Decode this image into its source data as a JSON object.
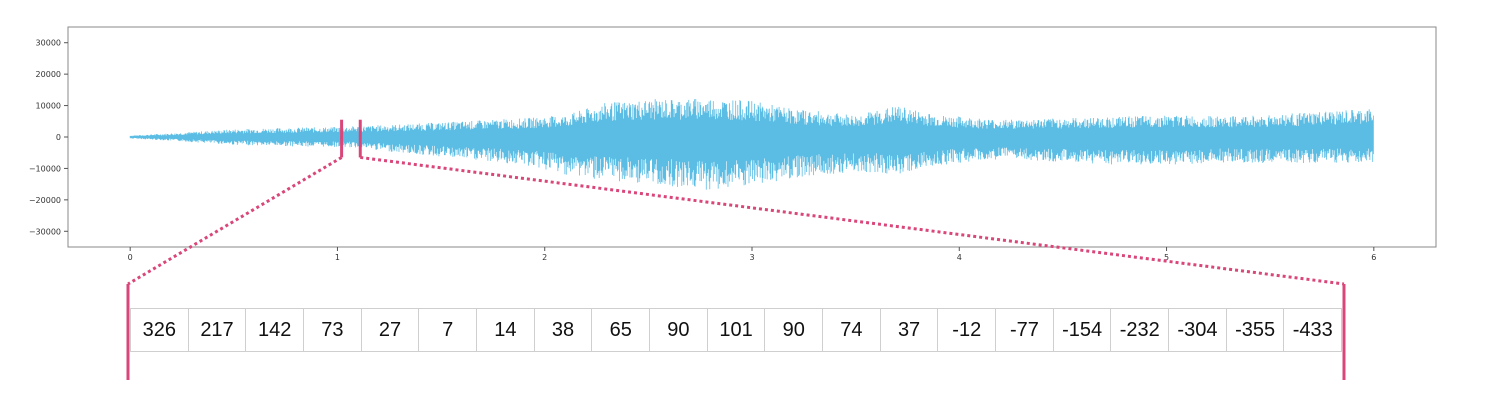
{
  "chart_data": {
    "type": "line",
    "title": "",
    "xlabel": "",
    "ylabel": "",
    "xlim": [
      -0.3,
      6.3
    ],
    "ylim": [
      -35000,
      35000
    ],
    "x_ticks": [
      "0",
      "1",
      "2",
      "3",
      "4",
      "5",
      "6"
    ],
    "y_ticks": [
      "30000",
      "20000",
      "10000",
      "0",
      "−10000",
      "−20000",
      "−30000"
    ],
    "y_tick_values": [
      30000,
      20000,
      10000,
      0,
      -10000,
      -20000,
      -30000
    ],
    "grid": false,
    "series": [
      {
        "color": "#5bbde4",
        "envelope": {
          "t": [
            0,
            0.2,
            0.5,
            0.8,
            1.0,
            1.1,
            1.3,
            1.6,
            1.9,
            2.1,
            2.3,
            2.5,
            2.8,
            3.0,
            3.2,
            3.5,
            3.7,
            3.9,
            4.2,
            4.5,
            4.8,
            5.0,
            5.3,
            5.6,
            6.0
          ],
          "max": [
            500,
            1200,
            2500,
            3000,
            3200,
            3500,
            4000,
            5000,
            6000,
            7000,
            11000,
            12000,
            12500,
            11500,
            9000,
            7000,
            10000,
            7000,
            5500,
            6000,
            6500,
            7000,
            6500,
            7500,
            9000
          ],
          "min": [
            -500,
            -1200,
            -2500,
            -3000,
            -3200,
            -3500,
            -5000,
            -7000,
            -9000,
            -12000,
            -14000,
            -15000,
            -17000,
            -16000,
            -13000,
            -11000,
            -12000,
            -9000,
            -7000,
            -8000,
            -9000,
            -9000,
            -8000,
            -8500,
            -8000
          ]
        }
      }
    ],
    "highlight": {
      "x_start": 1.02,
      "x_end": 1.11,
      "color": "#d9467a",
      "samples": [
        326,
        217,
        142,
        73,
        27,
        7,
        14,
        38,
        65,
        90,
        101,
        90,
        74,
        37,
        -12,
        -77,
        -154,
        -232,
        -304,
        -355,
        -433
      ]
    }
  }
}
